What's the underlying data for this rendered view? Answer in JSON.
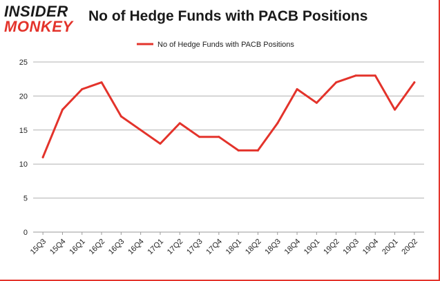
{
  "logo": {
    "line1": "INSIDER",
    "line2": "MONKEY"
  },
  "chart_data": {
    "type": "line",
    "title": "No of Hedge Funds with PACB Positions",
    "categories": [
      "15Q3",
      "15Q4",
      "16Q1",
      "16Q2",
      "16Q3",
      "16Q4",
      "17Q1",
      "17Q2",
      "17Q3",
      "17Q4",
      "18Q1",
      "18Q2",
      "18Q3",
      "18Q4",
      "19Q1",
      "19Q2",
      "19Q3",
      "19Q4",
      "20Q1",
      "20Q2"
    ],
    "series": [
      {
        "name": "No of Hedge Funds with PACB Positions",
        "values": [
          11,
          18,
          21,
          22,
          17,
          15,
          13,
          16,
          14,
          14,
          12,
          12,
          16,
          21,
          19,
          22,
          23,
          23,
          18,
          22
        ],
        "color": "#e3332b"
      }
    ],
    "ylim": [
      0,
      25
    ],
    "yticks": [
      0,
      5,
      10,
      15,
      20,
      25
    ],
    "grid": true,
    "legend": "top-center",
    "gridColor": "#b0b0b0"
  }
}
